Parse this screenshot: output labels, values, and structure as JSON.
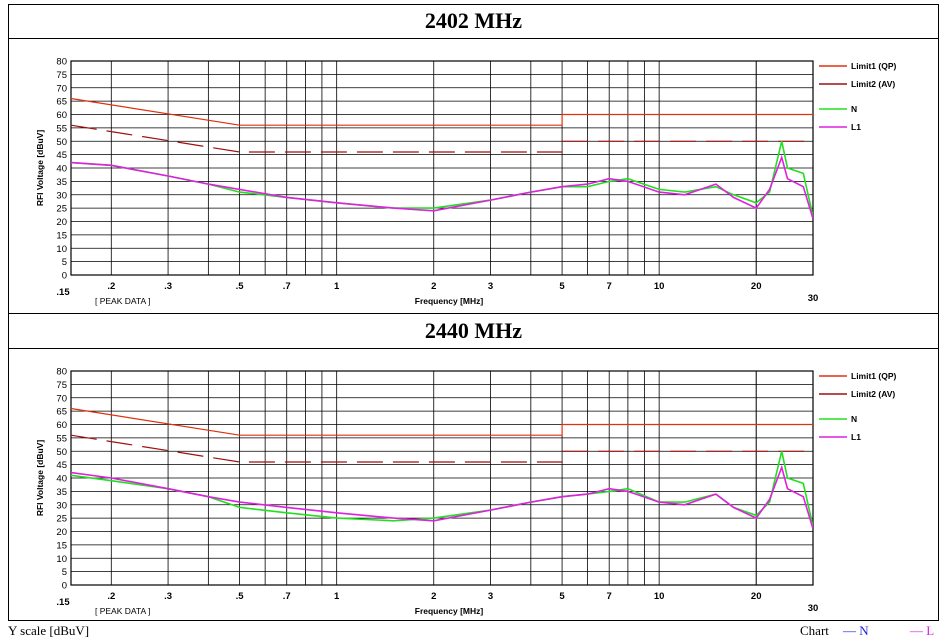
{
  "footer": {
    "y_scale": "Y scale [dBuV]",
    "chart_word": "Chart",
    "legend_n": "N",
    "legend_l": "L",
    "legend_n_color": "#1f1fe0",
    "legend_l_color": "#e020e0"
  },
  "chart_data": [
    {
      "type": "line",
      "title": "2402 MHz",
      "xlabel": "Frequency [MHz]",
      "ylabel": "RFI Voltage [dBuV]",
      "note": "[ PEAK DATA ]",
      "x_scale": "log",
      "xlim": [
        0.15,
        30
      ],
      "ylim": [
        0,
        80
      ],
      "y_ticks": [
        0,
        5,
        10,
        15,
        20,
        25,
        30,
        35,
        40,
        45,
        50,
        55,
        60,
        65,
        70,
        75,
        80
      ],
      "x_tick_labels": [
        ".15",
        ".2",
        ".3",
        ".5",
        ".7",
        "1",
        "2",
        "3",
        "5",
        "7",
        "10",
        "20",
        "30"
      ],
      "x_tick_values": [
        0.15,
        0.2,
        0.3,
        0.5,
        0.7,
        1,
        2,
        3,
        5,
        7,
        10,
        20,
        30
      ],
      "grid": true,
      "legend_position": "right",
      "series": [
        {
          "name": "Limit1 (QP)",
          "color": "#e03010",
          "style": "solid",
          "x": [
            0.15,
            0.5,
            0.5,
            5,
            5,
            30
          ],
          "y": [
            66,
            56,
            56,
            56,
            60,
            60
          ]
        },
        {
          "name": "Limit2 (AV)",
          "color": "#a01010",
          "style": "dashed",
          "x": [
            0.15,
            0.5,
            0.5,
            5,
            5,
            30
          ],
          "y": [
            56,
            46,
            46,
            46,
            50,
            50
          ]
        },
        {
          "name": "N",
          "color": "#20e020",
          "style": "solid",
          "x": [
            0.15,
            0.2,
            0.3,
            0.4,
            0.5,
            0.7,
            1,
            1.5,
            2,
            3,
            4,
            5,
            6,
            7,
            8,
            10,
            12,
            15,
            17,
            20,
            22,
            24,
            25,
            28,
            30
          ],
          "y": [
            42,
            41,
            37,
            34,
            31,
            29,
            27,
            25,
            25,
            28,
            31,
            33,
            33,
            35,
            36,
            32,
            31,
            33,
            30,
            27,
            31,
            50,
            40,
            38,
            22
          ]
        },
        {
          "name": "L1",
          "color": "#e020e0",
          "style": "solid",
          "x": [
            0.15,
            0.2,
            0.3,
            0.4,
            0.5,
            0.7,
            1,
            1.5,
            2,
            3,
            4,
            5,
            6,
            7,
            8,
            10,
            12,
            15,
            17,
            20,
            22,
            24,
            25,
            28,
            30
          ],
          "y": [
            42,
            41,
            37,
            34,
            32,
            29,
            27,
            25,
            24,
            28,
            31,
            33,
            34,
            36,
            35,
            31,
            30,
            34,
            29,
            25,
            32,
            44,
            36,
            33,
            21
          ]
        }
      ]
    },
    {
      "type": "line",
      "title": "2440 MHz",
      "xlabel": "Frequency [MHz]",
      "ylabel": "RFI Voltage [dBuV]",
      "note": "[ PEAK DATA ]",
      "x_scale": "log",
      "xlim": [
        0.15,
        30
      ],
      "ylim": [
        0,
        80
      ],
      "y_ticks": [
        0,
        5,
        10,
        15,
        20,
        25,
        30,
        35,
        40,
        45,
        50,
        55,
        60,
        65,
        70,
        75,
        80
      ],
      "x_tick_labels": [
        ".15",
        ".2",
        ".3",
        ".5",
        ".7",
        "1",
        "2",
        "3",
        "5",
        "7",
        "10",
        "20",
        "30"
      ],
      "x_tick_values": [
        0.15,
        0.2,
        0.3,
        0.5,
        0.7,
        1,
        2,
        3,
        5,
        7,
        10,
        20,
        30
      ],
      "grid": true,
      "legend_position": "right",
      "series": [
        {
          "name": "Limit1 (QP)",
          "color": "#e03010",
          "style": "solid",
          "x": [
            0.15,
            0.5,
            0.5,
            5,
            5,
            30
          ],
          "y": [
            66,
            56,
            56,
            56,
            60,
            60
          ]
        },
        {
          "name": "Limit2 (AV)",
          "color": "#a01010",
          "style": "dashed",
          "x": [
            0.15,
            0.5,
            0.5,
            5,
            5,
            30
          ],
          "y": [
            56,
            46,
            46,
            46,
            50,
            50
          ]
        },
        {
          "name": "N",
          "color": "#20e020",
          "style": "solid",
          "x": [
            0.15,
            0.2,
            0.3,
            0.4,
            0.5,
            0.7,
            1,
            1.5,
            2,
            3,
            4,
            5,
            6,
            7,
            8,
            10,
            12,
            15,
            17,
            20,
            22,
            24,
            25,
            28,
            30
          ],
          "y": [
            41,
            39,
            36,
            33,
            29,
            27,
            25,
            24,
            25,
            28,
            31,
            33,
            34,
            35,
            36,
            31,
            31,
            34,
            29,
            26,
            31,
            50,
            40,
            38,
            22
          ]
        },
        {
          "name": "L1",
          "color": "#e020e0",
          "style": "solid",
          "x": [
            0.15,
            0.2,
            0.3,
            0.4,
            0.5,
            0.7,
            1,
            1.5,
            2,
            3,
            4,
            5,
            6,
            7,
            8,
            10,
            12,
            15,
            17,
            20,
            22,
            24,
            25,
            28,
            30
          ],
          "y": [
            42,
            40,
            36,
            33,
            31,
            29,
            27,
            25,
            24,
            28,
            31,
            33,
            34,
            36,
            35,
            31,
            30,
            34,
            29,
            25,
            32,
            44,
            36,
            33,
            21
          ]
        }
      ]
    }
  ]
}
